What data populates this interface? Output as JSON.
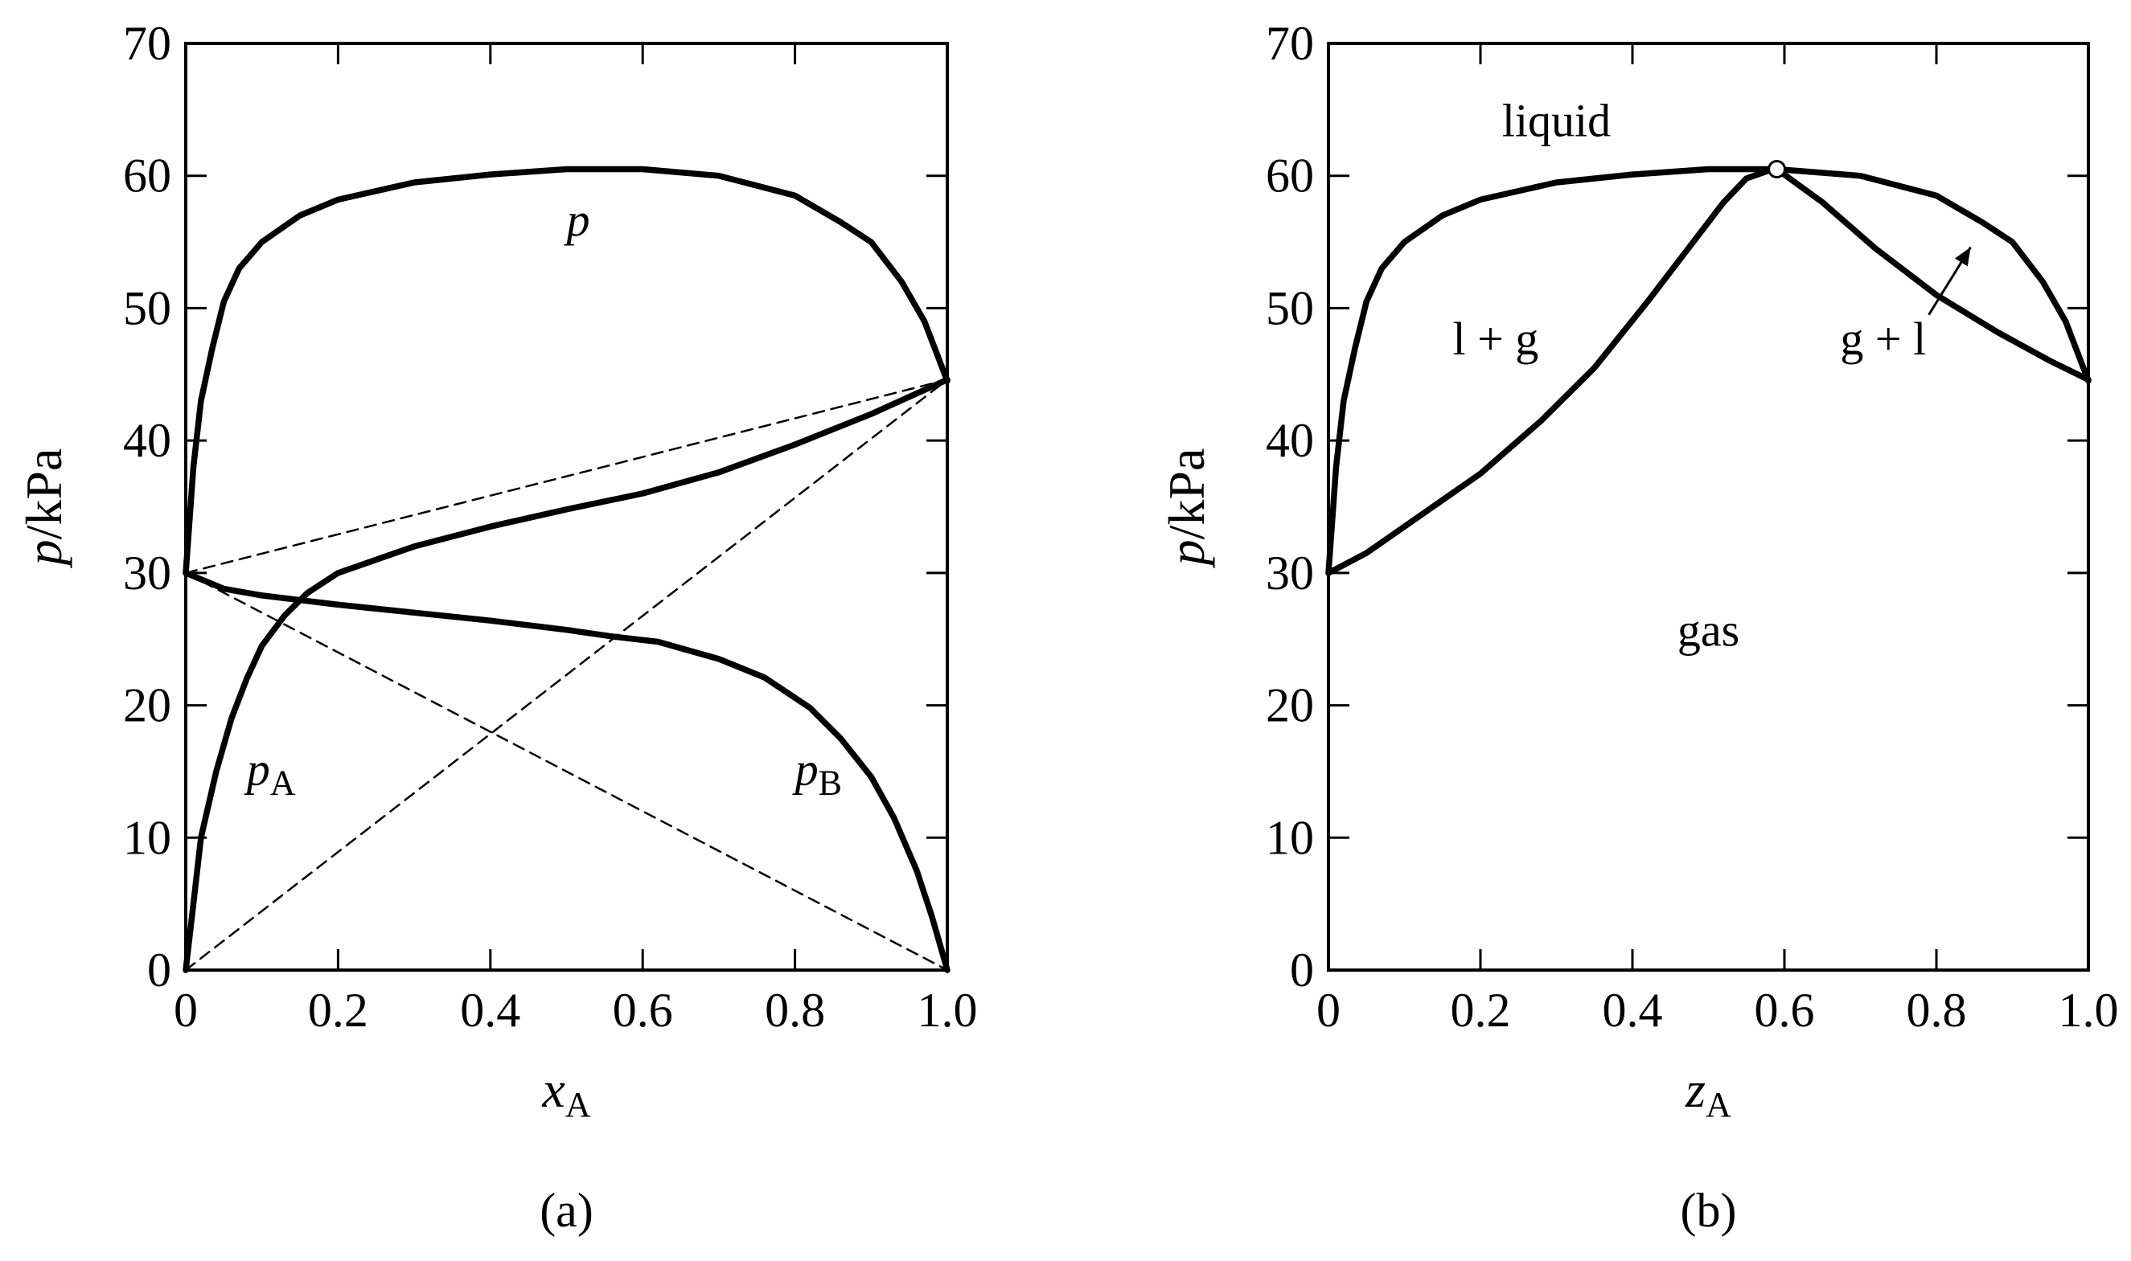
{
  "chart_data": [
    {
      "type": "line",
      "panel_label": "(a)",
      "xlabel": {
        "main": "x",
        "sub": "A"
      },
      "ylabel": {
        "main": "p",
        "rest": "/kPa"
      },
      "xlim": [
        0,
        1.0
      ],
      "ylim": [
        0,
        70
      ],
      "x_ticks": [
        0,
        0.2,
        0.4,
        0.6,
        0.8,
        1.0
      ],
      "x_tick_labels": [
        "0",
        "0.2",
        "0.4",
        "0.6",
        "0.8",
        "1.0"
      ],
      "y_ticks": [
        0,
        10,
        20,
        30,
        40,
        50,
        60,
        70
      ],
      "y_tick_labels": [
        "0",
        "10",
        "20",
        "30",
        "40",
        "50",
        "60",
        "70"
      ],
      "series": [
        {
          "key": "p",
          "style": "solid",
          "x": [
            0,
            0.01,
            0.02,
            0.035,
            0.05,
            0.07,
            0.1,
            0.15,
            0.2,
            0.3,
            0.4,
            0.5,
            0.6,
            0.7,
            0.8,
            0.86,
            0.9,
            0.94,
            0.97,
            1.0
          ],
          "y": [
            30,
            38,
            43,
            47,
            50.5,
            53,
            55,
            57,
            58.2,
            59.5,
            60.1,
            60.5,
            60.5,
            60,
            58.5,
            56.5,
            55,
            52,
            49,
            44.5
          ]
        },
        {
          "key": "pA",
          "style": "solid",
          "x": [
            0,
            0.01,
            0.02,
            0.04,
            0.06,
            0.08,
            0.1,
            0.13,
            0.16,
            0.2,
            0.3,
            0.4,
            0.5,
            0.6,
            0.7,
            0.8,
            0.9,
            1.0
          ],
          "y": [
            0,
            5,
            10,
            15,
            19,
            22,
            24.5,
            26.8,
            28.5,
            30,
            32,
            33.5,
            34.8,
            36,
            37.6,
            39.7,
            42,
            44.6
          ]
        },
        {
          "key": "pB",
          "style": "solid",
          "x": [
            0,
            0.05,
            0.1,
            0.2,
            0.3,
            0.4,
            0.5,
            0.56,
            0.62,
            0.7,
            0.76,
            0.82,
            0.86,
            0.9,
            0.93,
            0.96,
            0.98,
            1.0
          ],
          "y": [
            30,
            28.8,
            28.3,
            27.6,
            27,
            26.4,
            25.7,
            25.2,
            24.8,
            23.5,
            22.1,
            19.8,
            17.5,
            14.6,
            11.5,
            7.5,
            4,
            0
          ]
        },
        {
          "key": "ideal-p",
          "style": "dashed",
          "x": [
            0,
            1.0
          ],
          "y": [
            30,
            44.6
          ]
        },
        {
          "key": "ideal-pA",
          "style": "dashed",
          "x": [
            0,
            1.0
          ],
          "y": [
            0,
            44.6
          ]
        },
        {
          "key": "ideal-pB",
          "style": "dashed",
          "x": [
            0,
            1.0
          ],
          "y": [
            30,
            0
          ]
        }
      ],
      "annotations": [
        {
          "key": "p",
          "main": "p",
          "sub": "",
          "x": 0.5,
          "y": 55.5
        },
        {
          "key": "pA",
          "main": "p",
          "sub": "A",
          "x": 0.08,
          "y": 14
        },
        {
          "key": "pB",
          "main": "p",
          "sub": "B",
          "x": 0.8,
          "y": 14
        }
      ]
    },
    {
      "type": "line",
      "panel_label": "(b)",
      "xlabel": {
        "main": "z",
        "sub": "A"
      },
      "ylabel": {
        "main": "p",
        "rest": "/kPa"
      },
      "xlim": [
        0,
        1.0
      ],
      "ylim": [
        0,
        70
      ],
      "x_ticks": [
        0,
        0.2,
        0.4,
        0.6,
        0.8,
        1.0
      ],
      "x_tick_labels": [
        "0",
        "0.2",
        "0.4",
        "0.6",
        "0.8",
        "1.0"
      ],
      "y_ticks": [
        0,
        10,
        20,
        30,
        40,
        50,
        60,
        70
      ],
      "y_tick_labels": [
        "0",
        "10",
        "20",
        "30",
        "40",
        "50",
        "60",
        "70"
      ],
      "series": [
        {
          "key": "bubble",
          "style": "solid",
          "x": [
            0,
            0.01,
            0.02,
            0.035,
            0.05,
            0.07,
            0.1,
            0.15,
            0.2,
            0.3,
            0.4,
            0.5,
            0.59,
            0.7,
            0.8,
            0.86,
            0.9,
            0.94,
            0.97,
            1.0
          ],
          "y": [
            30,
            38,
            43,
            47,
            50.5,
            53,
            55,
            57,
            58.2,
            59.5,
            60.1,
            60.5,
            60.5,
            60,
            58.5,
            56.5,
            55,
            52,
            49,
            44.5
          ]
        },
        {
          "key": "dew",
          "style": "solid",
          "x": [
            0,
            0.05,
            0.1,
            0.2,
            0.28,
            0.35,
            0.42,
            0.48,
            0.52,
            0.55,
            0.58,
            0.59,
            0.65,
            0.72,
            0.8,
            0.88,
            0.95,
            1.0
          ],
          "y": [
            30,
            31.5,
            33.5,
            37.5,
            41.5,
            45.5,
            50.5,
            55,
            58,
            59.8,
            60.4,
            60.5,
            58,
            54.5,
            51,
            48.2,
            46,
            44.6
          ]
        }
      ],
      "azeotrope": {
        "x": 0.59,
        "y": 60.5
      },
      "annotations": [
        {
          "key": "liquid",
          "text": "liquid",
          "x": 0.3,
          "y": 63
        },
        {
          "key": "l-plus-g",
          "text": "l + g",
          "x": 0.22,
          "y": 46.5
        },
        {
          "key": "g-plus-l",
          "text": "g + l",
          "x": 0.73,
          "y": 46.5
        },
        {
          "key": "gas",
          "text": "gas",
          "x": 0.5,
          "y": 24.5
        }
      ],
      "arrow": {
        "from": [
          0.79,
          49.5
        ],
        "to": [
          0.845,
          54.6
        ]
      }
    }
  ]
}
